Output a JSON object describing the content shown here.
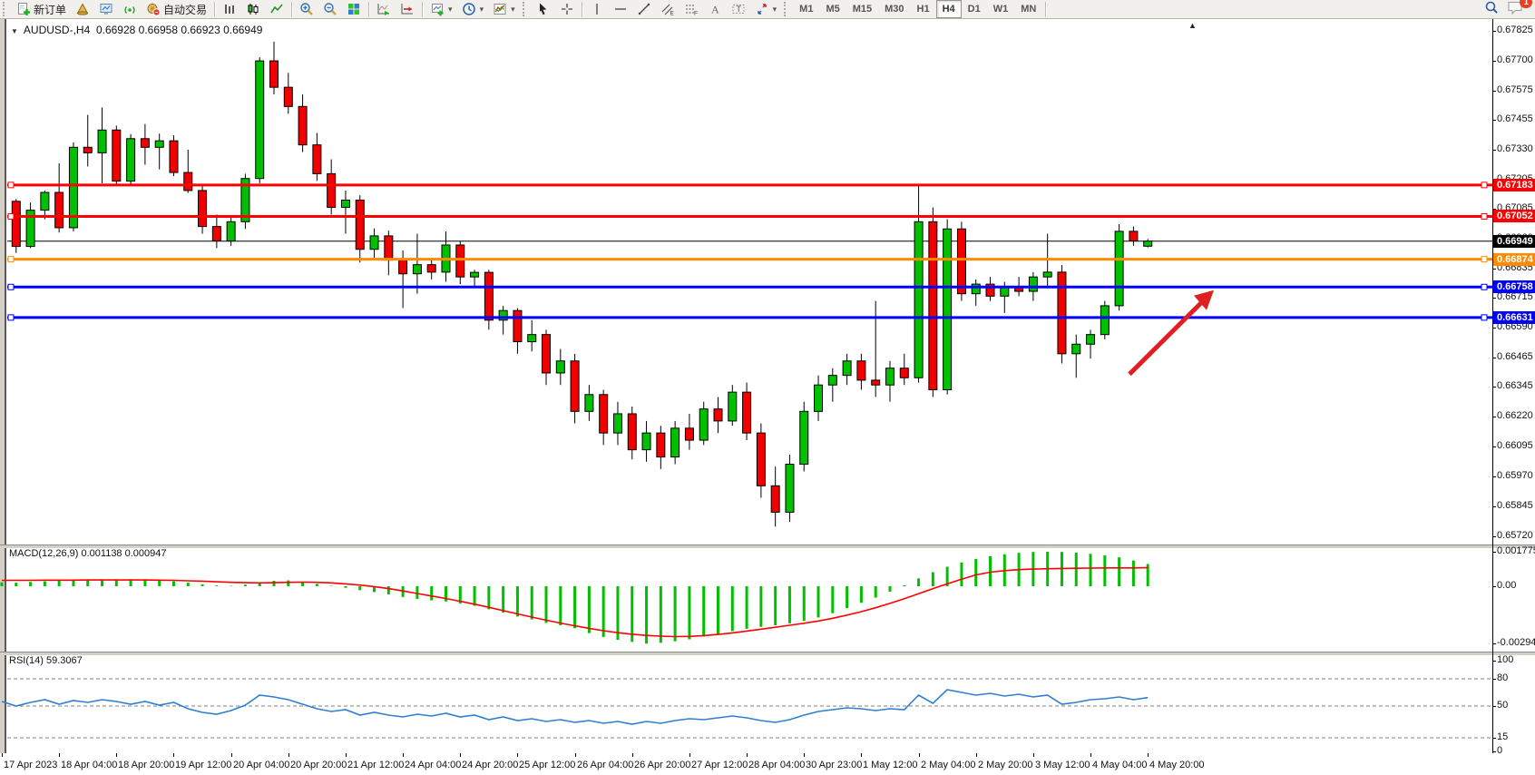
{
  "toolbar": {
    "new_order_label": "新订单",
    "auto_trading_label": "自动交易",
    "timeframes": [
      "M1",
      "M5",
      "M15",
      "M30",
      "H1",
      "H4",
      "D1",
      "W1",
      "MN"
    ],
    "active_timeframe": "H4",
    "notification_badge": "1",
    "icon_buttons": [
      "new-order",
      "market-watch",
      "data-window",
      "strategy-tester",
      "auto-trading",
      "bar-chart-mode",
      "candlestick-mode",
      "line-chart-mode",
      "zoom-in",
      "zoom-out",
      "tile-windows",
      "auto-scroll",
      "chart-shift",
      "new-chart",
      "periods",
      "indicators",
      "cursor",
      "crosshair",
      "vertical-line",
      "horizontal-line",
      "trendline",
      "equidistant-channel",
      "fibonacci",
      "text",
      "text-label",
      "arrows",
      "search",
      "notifications"
    ]
  },
  "chart": {
    "symbol_period": "AUDUSD-,H4",
    "ohlc_text": "0.66928 0.66958 0.66923 0.66949",
    "title_arrow": "▼",
    "scroll_marker": "▲"
  },
  "chart_data": {
    "type": "candlestick",
    "symbol": "AUDUSD",
    "timeframe": "H4",
    "current": {
      "open": 0.66928,
      "high": 0.66958,
      "low": 0.66923,
      "close": 0.66949
    },
    "ylim": [
      0.6572,
      0.67825
    ],
    "price_ticks": [
      "0.67825",
      "0.67700",
      "0.67575",
      "0.67455",
      "0.67330",
      "0.67205",
      "0.67085",
      "0.66960",
      "0.66835",
      "0.66715",
      "0.66590",
      "0.66465",
      "0.66345",
      "0.66220",
      "0.66095",
      "0.65970",
      "0.65845",
      "0.65720"
    ],
    "time_labels": [
      "17 Apr 2023",
      "18 Apr 04:00",
      "18 Apr 20:00",
      "19 Apr 12:00",
      "20 Apr 04:00",
      "20 Apr 20:00",
      "21 Apr 12:00",
      "24 Apr 04:00",
      "24 Apr 20:00",
      "25 Apr 12:00",
      "26 Apr 04:00",
      "26 Apr 20:00",
      "27 Apr 12:00",
      "28 Apr 04:00",
      "30 Apr 23:00",
      "1 May 12:00",
      "2 May 04:00",
      "2 May 20:00",
      "3 May 12:00",
      "4 May 04:00",
      "4 May 20:00"
    ],
    "candles": [
      [
        0.6695,
        0.6713,
        0.6692,
        0.67115
      ],
      [
        0.67115,
        0.67125,
        0.669,
        0.66927
      ],
      [
        0.66927,
        0.6711,
        0.6692,
        0.67078
      ],
      [
        0.67078,
        0.6716,
        0.6704,
        0.67152
      ],
      [
        0.67152,
        0.67273,
        0.66985,
        0.67005
      ],
      [
        0.67005,
        0.6736,
        0.6699,
        0.6734
      ],
      [
        0.6734,
        0.67475,
        0.6726,
        0.67317
      ],
      [
        0.67317,
        0.67506,
        0.6719,
        0.67412
      ],
      [
        0.67412,
        0.6743,
        0.67185,
        0.67199
      ],
      [
        0.67199,
        0.67395,
        0.6718,
        0.67376
      ],
      [
        0.67376,
        0.67437,
        0.67267,
        0.6734
      ],
      [
        0.6734,
        0.67397,
        0.67248,
        0.67367
      ],
      [
        0.67367,
        0.6739,
        0.6722,
        0.67235
      ],
      [
        0.67235,
        0.6733,
        0.6715,
        0.6716
      ],
      [
        0.6716,
        0.6718,
        0.6698,
        0.6701
      ],
      [
        0.6701,
        0.6706,
        0.6692,
        0.6695
      ],
      [
        0.6695,
        0.6705,
        0.6693,
        0.6703
      ],
      [
        0.6703,
        0.6723,
        0.67,
        0.6721
      ],
      [
        0.6721,
        0.67715,
        0.6719,
        0.677
      ],
      [
        0.677,
        0.6778,
        0.6756,
        0.6759
      ],
      [
        0.6759,
        0.6765,
        0.6748,
        0.6751
      ],
      [
        0.6751,
        0.6756,
        0.6732,
        0.6735
      ],
      [
        0.6735,
        0.674,
        0.672,
        0.6723
      ],
      [
        0.6723,
        0.6729,
        0.6706,
        0.6709
      ],
      [
        0.6709,
        0.6716,
        0.6698,
        0.6712
      ],
      [
        0.6712,
        0.6714,
        0.6686,
        0.66915
      ],
      [
        0.66915,
        0.67002,
        0.6688,
        0.66971
      ],
      [
        0.66971,
        0.66993,
        0.66807,
        0.6687
      ],
      [
        0.6687,
        0.6691,
        0.6667,
        0.66813
      ],
      [
        0.66813,
        0.6698,
        0.6673,
        0.66851
      ],
      [
        0.66851,
        0.6688,
        0.6679,
        0.6682
      ],
      [
        0.6682,
        0.6699,
        0.6678,
        0.66933
      ],
      [
        0.66933,
        0.6695,
        0.6677,
        0.668
      ],
      [
        0.668,
        0.6683,
        0.6676,
        0.66819
      ],
      [
        0.66819,
        0.6683,
        0.6658,
        0.6662
      ],
      [
        0.6662,
        0.6668,
        0.6656,
        0.6666
      ],
      [
        0.6666,
        0.6667,
        0.6648,
        0.6653
      ],
      [
        0.6653,
        0.6662,
        0.6649,
        0.6656
      ],
      [
        0.6656,
        0.6658,
        0.6635,
        0.664
      ],
      [
        0.664,
        0.665,
        0.6635,
        0.6645
      ],
      [
        0.6645,
        0.6648,
        0.6619,
        0.6624
      ],
      [
        0.6624,
        0.6635,
        0.662,
        0.6631
      ],
      [
        0.6631,
        0.6633,
        0.661,
        0.6615
      ],
      [
        0.6615,
        0.6628,
        0.661,
        0.6623
      ],
      [
        0.6623,
        0.6626,
        0.6604,
        0.6608
      ],
      [
        0.6608,
        0.662,
        0.6603,
        0.6615
      ],
      [
        0.6615,
        0.6618,
        0.66,
        0.6605
      ],
      [
        0.6605,
        0.662,
        0.6602,
        0.6617
      ],
      [
        0.6617,
        0.6623,
        0.6608,
        0.6612
      ],
      [
        0.6612,
        0.6628,
        0.661,
        0.6625
      ],
      [
        0.6625,
        0.663,
        0.6615,
        0.662
      ],
      [
        0.662,
        0.6635,
        0.6618,
        0.6632
      ],
      [
        0.6632,
        0.6636,
        0.6612,
        0.6615
      ],
      [
        0.6615,
        0.6619,
        0.6588,
        0.6593
      ],
      [
        0.6593,
        0.6601,
        0.6576,
        0.6582
      ],
      [
        0.6582,
        0.6606,
        0.6578,
        0.6602
      ],
      [
        0.6602,
        0.6628,
        0.6599,
        0.6624
      ],
      [
        0.6624,
        0.6639,
        0.662,
        0.6635
      ],
      [
        0.6635,
        0.6642,
        0.6628,
        0.6639
      ],
      [
        0.6639,
        0.6648,
        0.6635,
        0.6645
      ],
      [
        0.6645,
        0.6648,
        0.6633,
        0.6637
      ],
      [
        0.6637,
        0.667,
        0.663,
        0.6635
      ],
      [
        0.6635,
        0.6645,
        0.6628,
        0.6642
      ],
      [
        0.6642,
        0.6648,
        0.6635,
        0.6638
      ],
      [
        0.6638,
        0.67185,
        0.6636,
        0.6703
      ],
      [
        0.6703,
        0.6709,
        0.663,
        0.6633
      ],
      [
        0.6633,
        0.6704,
        0.6631,
        0.67
      ],
      [
        0.67,
        0.6703,
        0.667,
        0.6673
      ],
      [
        0.6673,
        0.6679,
        0.6668,
        0.6677
      ],
      [
        0.6677,
        0.668,
        0.667,
        0.6672
      ],
      [
        0.6672,
        0.6678,
        0.6665,
        0.6676
      ],
      [
        0.6676,
        0.668,
        0.6672,
        0.6674
      ],
      [
        0.6674,
        0.6682,
        0.667,
        0.668
      ],
      [
        0.668,
        0.6698,
        0.6676,
        0.6682
      ],
      [
        0.6682,
        0.6685,
        0.6644,
        0.6648
      ],
      [
        0.6648,
        0.6656,
        0.6638,
        0.6652
      ],
      [
        0.6652,
        0.6658,
        0.6646,
        0.6656
      ],
      [
        0.6656,
        0.667,
        0.6654,
        0.6668
      ],
      [
        0.6668,
        0.6702,
        0.6666,
        0.6699
      ],
      [
        0.6699,
        0.6701,
        0.6693,
        0.6695
      ],
      [
        0.66928,
        0.66958,
        0.66923,
        0.66949
      ]
    ],
    "hlines": [
      {
        "label": "0.67183",
        "price": 0.67183,
        "color": "#ff0000"
      },
      {
        "label": "0.67052",
        "price": 0.67052,
        "color": "#ff0000"
      },
      {
        "label": "0.66874",
        "price": 0.66874,
        "color": "#ff8c00"
      },
      {
        "label": "0.66758",
        "price": 0.66758,
        "color": "#0000ff"
      },
      {
        "label": "0.66631",
        "price": 0.66631,
        "color": "#0000ff"
      }
    ],
    "current_price_line": {
      "label": "0.66949",
      "price": 0.66949,
      "color": "#000000"
    },
    "colors": {
      "bull": "#00c000",
      "bear": "#f20000",
      "wick": "#000000",
      "macd_hist": "#00c000",
      "macd_signal": "#ff0000",
      "rsi_line": "#2e7fd2",
      "annotation": "#e02020"
    },
    "indicators": {
      "macd": {
        "label": "MACD(12,26,9)",
        "values_text": "0.001138 0.000947",
        "value": 0.001138,
        "signal_value": 0.000947,
        "axis_labels": [
          "0.001775",
          "0.00",
          "-0.00294"
        ],
        "axis_values": [
          0.001775,
          0,
          -0.00294
        ],
        "histogram": [
          0.0002,
          0.00018,
          0.00022,
          0.00025,
          0.00028,
          0.0003,
          0.00032,
          0.00035,
          0.00033,
          0.0003,
          0.00032,
          0.00028,
          0.00025,
          0.00018,
          0.0001,
          4e-05,
          2e-05,
          8e-05,
          0.0002,
          0.00028,
          0.0003,
          0.00022,
          0.00012,
          2e-05,
          -8e-05,
          -0.0002,
          -0.0003,
          -0.00042,
          -0.00055,
          -0.00065,
          -0.00072,
          -0.00078,
          -0.00088,
          -0.001,
          -0.00118,
          -0.00135,
          -0.00155,
          -0.0017,
          -0.00188,
          -0.002,
          -0.00215,
          -0.0024,
          -0.0026,
          -0.00275,
          -0.00285,
          -0.00294,
          -0.0029,
          -0.00282,
          -0.00272,
          -0.00258,
          -0.00245,
          -0.0023,
          -0.00218,
          -0.00208,
          -0.002,
          -0.0019,
          -0.00178,
          -0.0016,
          -0.00138,
          -0.00112,
          -0.00085,
          -0.00058,
          -0.00028,
          5e-05,
          0.0004,
          0.00072,
          0.001,
          0.00122,
          0.0014,
          0.00154,
          0.00164,
          0.00171,
          0.00176,
          0.00177,
          0.00176,
          0.00172,
          0.00166,
          0.00158,
          0.00148,
          0.00132,
          0.001138
        ],
        "signal": [
          0.0003,
          0.0003,
          0.0003,
          0.00031,
          0.00031,
          0.00031,
          0.00032,
          0.00032,
          0.00032,
          0.00032,
          0.00032,
          0.00031,
          0.0003,
          0.00028,
          0.00026,
          0.00023,
          0.0002,
          0.00018,
          0.00017,
          0.00018,
          0.0002,
          0.00021,
          0.0002,
          0.00017,
          0.00012,
          6e-05,
          -2e-05,
          -0.00012,
          -0.00024,
          -0.00037,
          -0.0005,
          -0.00063,
          -0.00077,
          -0.00092,
          -0.00108,
          -0.00125,
          -0.00142,
          -0.00158,
          -0.00174,
          -0.00189,
          -0.00203,
          -0.00216,
          -0.00228,
          -0.00238,
          -0.00246,
          -0.00252,
          -0.00256,
          -0.00258,
          -0.00257,
          -0.00253,
          -0.00247,
          -0.00239,
          -0.0023,
          -0.0022,
          -0.0021,
          -0.002,
          -0.0019,
          -0.00178,
          -0.00164,
          -0.00148,
          -0.0013,
          -0.0011,
          -0.00088,
          -0.00064,
          -0.00038,
          -0.00012,
          0.00012,
          0.00036,
          0.00058,
          0.00072,
          0.0008,
          0.00085,
          0.00088,
          0.0009,
          0.00091,
          0.00092,
          0.00093,
          0.00094,
          0.00094,
          0.00094,
          0.000947
        ]
      },
      "rsi": {
        "label": "RSI(14)",
        "value_text": "59.3067",
        "value": 59.3067,
        "levels": [
          80,
          50,
          15
        ],
        "axis_labels": [
          "100",
          "80",
          "50",
          "15",
          "0"
        ],
        "series": [
          55,
          50,
          54,
          57,
          52,
          56,
          54,
          57,
          55,
          52,
          55,
          51,
          54,
          47,
          43,
          41,
          45,
          51,
          62,
          60,
          57,
          52,
          47,
          44,
          46,
          40,
          43,
          40,
          38,
          41,
          39,
          42,
          38,
          40,
          35,
          38,
          34,
          36,
          33,
          35,
          32,
          34,
          31,
          33,
          30,
          33,
          31,
          34,
          36,
          35,
          37,
          39,
          37,
          34,
          32,
          35,
          40,
          44,
          46,
          48,
          47,
          45,
          47,
          46,
          62,
          53,
          68,
          65,
          62,
          64,
          61,
          63,
          60,
          62,
          52,
          54,
          57,
          58,
          60,
          57,
          59.31
        ]
      }
    },
    "annotation_arrow": {
      "type": "arrow",
      "direction": "up-right",
      "color": "#e02020"
    }
  }
}
